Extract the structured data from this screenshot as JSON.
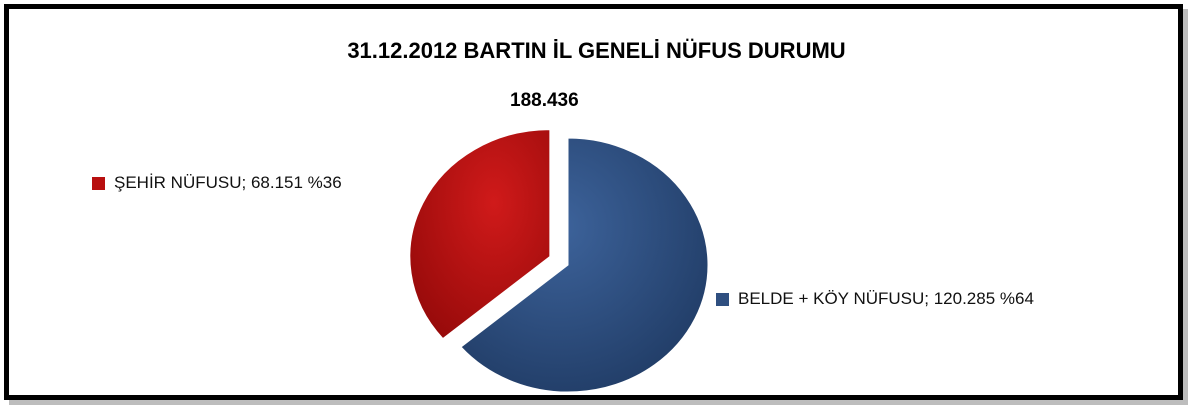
{
  "chart_data": {
    "type": "pie",
    "title": "31.12.2012 BARTIN İL GENELİ NÜFUS DURUMU",
    "total_label": "188.436",
    "slices": [
      {
        "name": "BELDE + KÖY NÜFUSU",
        "value": 120285,
        "percent": 64,
        "label": "BELDE + KÖY NÜFUSU; 120.285 %64",
        "color": "#2f4f80"
      },
      {
        "name": "ŞEHİR NÜFUSU",
        "value": 68151,
        "percent": 36,
        "label": "ŞEHİR NÜFUSU; 68.151 %36",
        "color": "#b80f0f",
        "exploded": true
      }
    ]
  }
}
